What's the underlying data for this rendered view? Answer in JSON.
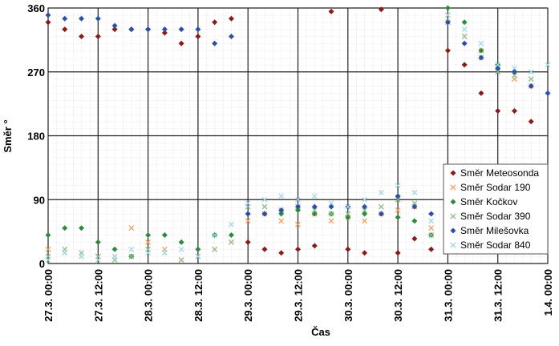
{
  "chart_data": {
    "type": "scatter",
    "x_label": "Čas",
    "y_label": "Směr °",
    "x": [
      "27.3. 00:00",
      "27.3. 04:00",
      "27.3. 08:00",
      "27.3. 12:00",
      "27.3. 16:00",
      "27.3. 20:00",
      "28.3. 00:00",
      "28.3. 04:00",
      "28.3. 08:00",
      "28.3. 12:00",
      "28.3. 16:00",
      "28.3. 20:00",
      "29.3. 00:00",
      "29.3. 04:00",
      "29.3. 08:00",
      "29.3. 12:00",
      "29.3. 16:00",
      "29.3. 20:00",
      "30.3. 00:00",
      "30.3. 04:00",
      "30.3. 08:00",
      "30.3. 12:00",
      "30.3. 16:00",
      "30.3. 20:00",
      "31.3. 00:00",
      "31.3. 04:00",
      "31.3. 08:00",
      "31.3. 12:00",
      "31.3. 16:00",
      "31.3. 20:00",
      "1.4. 00:00"
    ],
    "xlim": [
      "27.3. 00:00",
      "1.4. 00:00"
    ],
    "xticks": [
      "27.3. 00:00",
      "27.3. 12:00",
      "28.3. 00:00",
      "28.3. 12:00",
      "29.3. 00:00",
      "29.3. 12:00",
      "30.3. 00:00",
      "30.3. 12:00",
      "31.3. 00:00",
      "31.3. 12:00",
      "1.4. 00:00"
    ],
    "ylim": [
      0,
      360
    ],
    "yticks": [
      0,
      90,
      180,
      270,
      360
    ],
    "grid": true,
    "legend": "lower right",
    "series": [
      {
        "name": "Směr Meteosonda",
        "color": "#8b1a1a",
        "marker": "diamond",
        "values": [
          340,
          330,
          320,
          320,
          330,
          330,
          330,
          325,
          310,
          320,
          340,
          345,
          30,
          20,
          15,
          20,
          25,
          355,
          20,
          15,
          358,
          15,
          35,
          20,
          300,
          280,
          240,
          215,
          215,
          200,
          null
        ]
      },
      {
        "name": "Směr Sodar 190",
        "color": "#f0a060",
        "marker": "x",
        "values": [
          20,
          15,
          10,
          10,
          10,
          50,
          30,
          20,
          5,
          10,
          20,
          30,
          60,
          70,
          60,
          55,
          70,
          60,
          65,
          60,
          70,
          75,
          80,
          50,
          350,
          320,
          300,
          280,
          260,
          250,
          null
        ]
      },
      {
        "name": "Směr Kočkov",
        "color": "#2e8b3e",
        "marker": "diamond",
        "values": [
          40,
          50,
          50,
          30,
          20,
          10,
          40,
          40,
          30,
          20,
          40,
          40,
          70,
          70,
          70,
          75,
          70,
          70,
          65,
          70,
          70,
          65,
          60,
          40,
          360,
          340,
          300,
          280,
          270,
          250,
          null
        ]
      },
      {
        "name": "Směr Sodar 390",
        "color": "#8fbc8f",
        "marker": "x",
        "values": [
          10,
          20,
          15,
          10,
          5,
          10,
          20,
          15,
          5,
          10,
          20,
          30,
          80,
          80,
          75,
          80,
          75,
          70,
          70,
          75,
          80,
          90,
          85,
          40,
          340,
          320,
          290,
          270,
          265,
          260,
          null
        ]
      },
      {
        "name": "Směr Milešovka",
        "color": "#2e4fa8",
        "marker": "diamond",
        "values": [
          350,
          345,
          345,
          345,
          335,
          330,
          330,
          330,
          330,
          330,
          310,
          320,
          70,
          70,
          75,
          80,
          80,
          80,
          80,
          80,
          70,
          95,
          80,
          70,
          340,
          310,
          290,
          275,
          270,
          250,
          240
        ]
      },
      {
        "name": "Směr Sodar 840",
        "color": "#9fd8e8",
        "marker": "x",
        "values": [
          5,
          15,
          10,
          5,
          10,
          20,
          15,
          15,
          20,
          10,
          40,
          55,
          85,
          90,
          95,
          90,
          95,
          85,
          80,
          90,
          100,
          110,
          100,
          60,
          350,
          330,
          310,
          280,
          275,
          270,
          280
        ]
      }
    ]
  }
}
